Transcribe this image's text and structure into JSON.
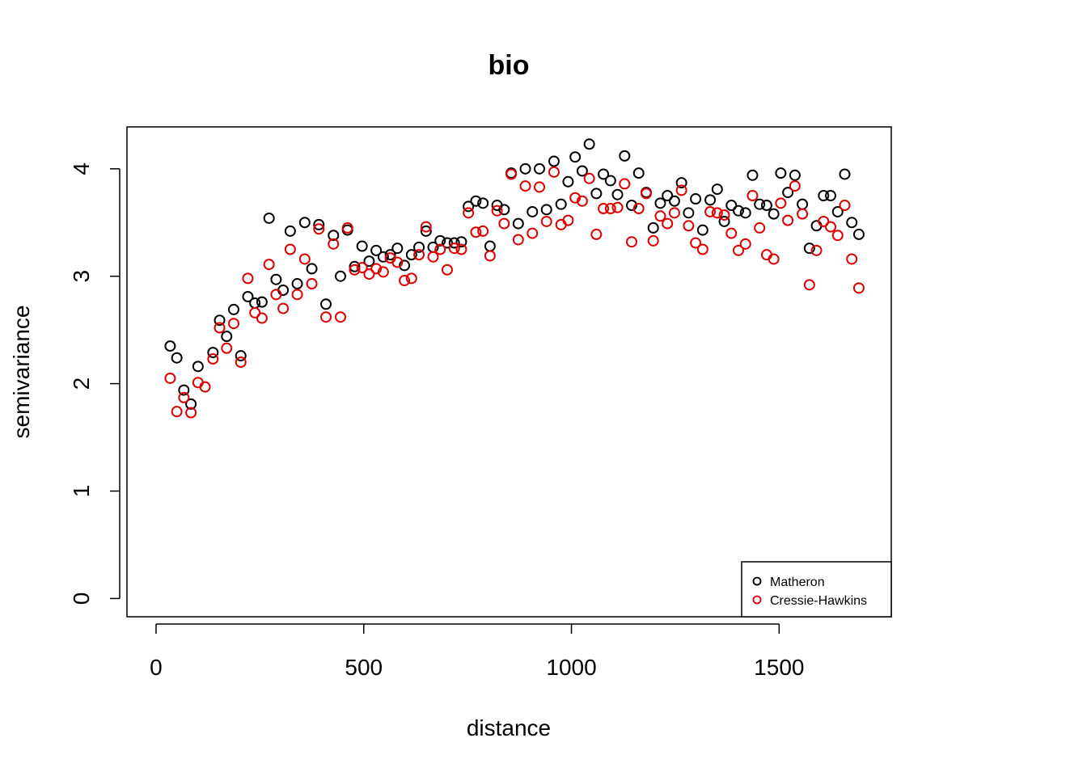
{
  "chart_data": {
    "type": "scatter",
    "title": "bio",
    "xlabel": "distance",
    "ylabel": "semivariance",
    "xlim": [
      -70,
      1770
    ],
    "ylim": [
      -0.17,
      4.39
    ],
    "xticks": [
      0,
      500,
      1000,
      1500
    ],
    "yticks": [
      0,
      1,
      2,
      3,
      4
    ],
    "grid": false,
    "legend_position": "bottom-right",
    "series": [
      {
        "name": "Matheron",
        "color": "#000000",
        "points": [
          [
            34,
            2.35
          ],
          [
            50,
            2.24
          ],
          [
            67,
            1.94
          ],
          [
            84,
            1.81
          ],
          [
            101,
            2.16
          ],
          [
            137,
            2.29
          ],
          [
            153,
            2.59
          ],
          [
            170,
            2.44
          ],
          [
            187,
            2.69
          ],
          [
            204,
            2.26
          ],
          [
            221,
            2.81
          ],
          [
            238,
            2.75
          ],
          [
            255,
            2.76
          ],
          [
            272,
            3.54
          ],
          [
            289,
            2.97
          ],
          [
            306,
            2.87
          ],
          [
            323,
            3.42
          ],
          [
            340,
            2.93
          ],
          [
            358,
            3.5
          ],
          [
            375,
            3.07
          ],
          [
            392,
            3.48
          ],
          [
            409,
            2.74
          ],
          [
            427,
            3.38
          ],
          [
            444,
            3.0
          ],
          [
            461,
            3.43
          ],
          [
            478,
            3.09
          ],
          [
            496,
            3.28
          ],
          [
            513,
            3.14
          ],
          [
            530,
            3.24
          ],
          [
            547,
            3.18
          ],
          [
            564,
            3.2
          ],
          [
            581,
            3.26
          ],
          [
            598,
            3.1
          ],
          [
            615,
            3.2
          ],
          [
            633,
            3.27
          ],
          [
            650,
            3.42
          ],
          [
            667,
            3.27
          ],
          [
            684,
            3.33
          ],
          [
            701,
            3.31
          ],
          [
            718,
            3.31
          ],
          [
            735,
            3.32
          ],
          [
            752,
            3.65
          ],
          [
            770,
            3.7
          ],
          [
            787,
            3.68
          ],
          [
            804,
            3.28
          ],
          [
            821,
            3.66
          ],
          [
            838,
            3.62
          ],
          [
            855,
            3.96
          ],
          [
            872,
            3.49
          ],
          [
            889,
            4.0
          ],
          [
            906,
            3.6
          ],
          [
            923,
            4.0
          ],
          [
            940,
            3.62
          ],
          [
            958,
            4.07
          ],
          [
            975,
            3.67
          ],
          [
            992,
            3.88
          ],
          [
            1009,
            4.11
          ],
          [
            1026,
            3.98
          ],
          [
            1043,
            4.23
          ],
          [
            1060,
            3.77
          ],
          [
            1077,
            3.95
          ],
          [
            1094,
            3.89
          ],
          [
            1111,
            3.76
          ],
          [
            1128,
            4.12
          ],
          [
            1145,
            3.66
          ],
          [
            1162,
            3.96
          ],
          [
            1180,
            3.78
          ],
          [
            1197,
            3.45
          ],
          [
            1214,
            3.68
          ],
          [
            1231,
            3.75
          ],
          [
            1248,
            3.7
          ],
          [
            1265,
            3.87
          ],
          [
            1282,
            3.59
          ],
          [
            1299,
            3.72
          ],
          [
            1316,
            3.43
          ],
          [
            1334,
            3.71
          ],
          [
            1351,
            3.81
          ],
          [
            1368,
            3.51
          ],
          [
            1385,
            3.66
          ],
          [
            1402,
            3.61
          ],
          [
            1419,
            3.59
          ],
          [
            1436,
            3.94
          ],
          [
            1453,
            3.67
          ],
          [
            1470,
            3.66
          ],
          [
            1487,
            3.58
          ],
          [
            1504,
            3.96
          ],
          [
            1521,
            3.78
          ],
          [
            1538,
            3.94
          ],
          [
            1556,
            3.67
          ],
          [
            1573,
            3.26
          ],
          [
            1590,
            3.47
          ],
          [
            1607,
            3.75
          ],
          [
            1624,
            3.75
          ],
          [
            1641,
            3.6
          ],
          [
            1658,
            3.95
          ],
          [
            1675,
            3.5
          ],
          [
            1692,
            3.39
          ]
        ]
      },
      {
        "name": "Cressie-Hawkins",
        "color": "#df0000",
        "points": [
          [
            34,
            2.05
          ],
          [
            50,
            1.74
          ],
          [
            67,
            1.87
          ],
          [
            84,
            1.73
          ],
          [
            101,
            2.01
          ],
          [
            118,
            1.97
          ],
          [
            137,
            2.23
          ],
          [
            153,
            2.52
          ],
          [
            170,
            2.33
          ],
          [
            187,
            2.56
          ],
          [
            204,
            2.2
          ],
          [
            221,
            2.98
          ],
          [
            238,
            2.66
          ],
          [
            255,
            2.61
          ],
          [
            272,
            3.11
          ],
          [
            289,
            2.83
          ],
          [
            306,
            2.7
          ],
          [
            323,
            3.25
          ],
          [
            340,
            2.83
          ],
          [
            358,
            3.16
          ],
          [
            375,
            2.93
          ],
          [
            392,
            3.44
          ],
          [
            409,
            2.62
          ],
          [
            427,
            3.3
          ],
          [
            444,
            2.62
          ],
          [
            461,
            3.45
          ],
          [
            478,
            3.06
          ],
          [
            496,
            3.08
          ],
          [
            513,
            3.02
          ],
          [
            530,
            3.07
          ],
          [
            547,
            3.04
          ],
          [
            564,
            3.17
          ],
          [
            581,
            3.13
          ],
          [
            598,
            2.96
          ],
          [
            615,
            2.98
          ],
          [
            633,
            3.2
          ],
          [
            650,
            3.46
          ],
          [
            667,
            3.18
          ],
          [
            684,
            3.25
          ],
          [
            701,
            3.06
          ],
          [
            718,
            3.26
          ],
          [
            735,
            3.25
          ],
          [
            752,
            3.59
          ],
          [
            770,
            3.41
          ],
          [
            787,
            3.42
          ],
          [
            804,
            3.19
          ],
          [
            821,
            3.61
          ],
          [
            838,
            3.49
          ],
          [
            855,
            3.95
          ],
          [
            872,
            3.34
          ],
          [
            889,
            3.84
          ],
          [
            906,
            3.4
          ],
          [
            923,
            3.83
          ],
          [
            940,
            3.51
          ],
          [
            958,
            3.97
          ],
          [
            975,
            3.48
          ],
          [
            992,
            3.52
          ],
          [
            1009,
            3.73
          ],
          [
            1026,
            3.7
          ],
          [
            1043,
            3.91
          ],
          [
            1060,
            3.39
          ],
          [
            1077,
            3.63
          ],
          [
            1094,
            3.63
          ],
          [
            1111,
            3.64
          ],
          [
            1128,
            3.86
          ],
          [
            1145,
            3.32
          ],
          [
            1162,
            3.63
          ],
          [
            1180,
            3.77
          ],
          [
            1197,
            3.33
          ],
          [
            1214,
            3.56
          ],
          [
            1231,
            3.49
          ],
          [
            1248,
            3.59
          ],
          [
            1265,
            3.8
          ],
          [
            1282,
            3.47
          ],
          [
            1299,
            3.31
          ],
          [
            1316,
            3.25
          ],
          [
            1334,
            3.6
          ],
          [
            1351,
            3.59
          ],
          [
            1368,
            3.57
          ],
          [
            1385,
            3.4
          ],
          [
            1402,
            3.24
          ],
          [
            1419,
            3.3
          ],
          [
            1436,
            3.75
          ],
          [
            1453,
            3.45
          ],
          [
            1470,
            3.2
          ],
          [
            1487,
            3.16
          ],
          [
            1504,
            3.68
          ],
          [
            1521,
            3.52
          ],
          [
            1538,
            3.84
          ],
          [
            1556,
            3.58
          ],
          [
            1573,
            2.92
          ],
          [
            1590,
            3.24
          ],
          [
            1607,
            3.51
          ],
          [
            1624,
            3.46
          ],
          [
            1641,
            3.38
          ],
          [
            1658,
            3.66
          ],
          [
            1675,
            3.16
          ],
          [
            1692,
            2.89
          ]
        ]
      }
    ]
  }
}
